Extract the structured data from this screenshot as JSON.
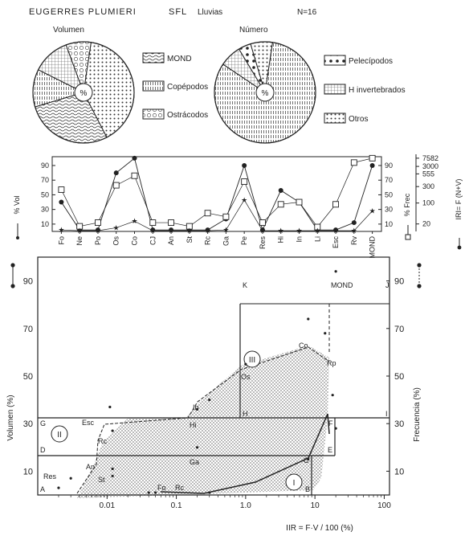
{
  "header": {
    "species": "EUGERRES PLUMIERI",
    "site": "SFL",
    "season": "Lluvias",
    "n": "N=16"
  },
  "colors": {
    "ink": "#222222",
    "paper": "#ffffff",
    "hatch": "#555555"
  },
  "chart_data": [
    {
      "type": "pie",
      "title": "Volumen",
      "center_label": "%",
      "slices": [
        {
          "name": "Otros",
          "value": 40,
          "pattern": "dots"
        },
        {
          "name": "MOND",
          "value": 28,
          "pattern": "waves"
        },
        {
          "name": "Copépodos",
          "value": 12,
          "pattern": "vlines"
        },
        {
          "name": "H invertebrados",
          "value": 12,
          "pattern": "grid"
        },
        {
          "name": "Ostrácodos",
          "value": 8,
          "pattern": "circles"
        }
      ],
      "legend": [
        {
          "name": "MOND",
          "pattern": "waves"
        },
        {
          "name": "Copépodos",
          "pattern": "vlines"
        },
        {
          "name": "Ostrácodos",
          "pattern": "circles"
        }
      ]
    },
    {
      "type": "pie",
      "title": "Número",
      "center_label": "%",
      "slices": [
        {
          "name": "Copépodos",
          "value": 82,
          "pattern": "vlines"
        },
        {
          "name": "H invertebrados",
          "value": 7,
          "pattern": "grid"
        },
        {
          "name": "Pelecípodos",
          "value": 4,
          "pattern": "bigdots"
        },
        {
          "name": "Otros",
          "value": 7,
          "pattern": "dots"
        }
      ],
      "legend": [
        {
          "name": "Pelecípodos",
          "pattern": "bigdots"
        },
        {
          "name": "H invertebrados",
          "pattern": "grid"
        },
        {
          "name": "Otros",
          "pattern": "dots"
        }
      ]
    },
    {
      "type": "line",
      "categories": [
        "Fo",
        "Ne",
        "Po",
        "Os",
        "Co",
        "CJ",
        "An",
        "St",
        "Rc",
        "Ga",
        "Pe",
        "Res",
        "Hi",
        "In",
        "Li",
        "Esc",
        "Rv",
        "MOND"
      ],
      "ylabel_left": "% Vol",
      "ylabel_mid": "% Frec",
      "ylabel_right": "IRI= F (N+V)",
      "yticks_left": [
        "90",
        "70",
        "50",
        "30",
        "10"
      ],
      "yticks_mid": [
        "90",
        "70",
        "50",
        "30",
        "10"
      ],
      "yticks_right": [
        "7582",
        "3000",
        "555",
        "300",
        "100",
        "20"
      ],
      "ylim": [
        0,
        100
      ],
      "series": [
        {
          "marker": "dot",
          "values": [
            40,
            2,
            2,
            80,
            100,
            2,
            2,
            2,
            2,
            17,
            90,
            2,
            56,
            40,
            2,
            2,
            12,
            90
          ]
        },
        {
          "marker": "square",
          "values": [
            57,
            7,
            12,
            63,
            76,
            12,
            12,
            7,
            25,
            20,
            68,
            12,
            37,
            40,
            6,
            37,
            94,
            100
          ]
        },
        {
          "marker": "star",
          "values": [
            2,
            1,
            1,
            5,
            14,
            1,
            1,
            1,
            1,
            2,
            43,
            1,
            1,
            1,
            1,
            1,
            1,
            28
          ]
        }
      ]
    },
    {
      "type": "scatter",
      "xscale": "log",
      "xlim": [
        0.001,
        100
      ],
      "xticks": [
        "0.01",
        "0.1",
        "1.0",
        "10",
        "100"
      ],
      "xlabel": "IIR = F·V / 100 (%)",
      "ylabel_left": "Volumen (%)",
      "ylabel_right": "Frecuencia (%)",
      "yticks": [
        "90",
        "70",
        "50",
        "30",
        "10"
      ],
      "ylim": [
        0,
        100
      ],
      "zone_labels": [
        "I",
        "II",
        "III"
      ],
      "corner_labels": [
        "A",
        "B",
        "C",
        "D",
        "E",
        "F",
        "G",
        "H",
        "I",
        "J",
        "K"
      ],
      "volume_points": [
        {
          "label": "Res",
          "x": 0.002,
          "y": 3
        },
        {
          "label": "Li",
          "x": 0.003,
          "y": 7
        },
        {
          "label": "An",
          "x": 0.012,
          "y": 11
        },
        {
          "label": "St",
          "x": 0.012,
          "y": 8
        },
        {
          "label": "Rc",
          "x": 0.012,
          "y": 27
        },
        {
          "label": "Esc",
          "x": 0.011,
          "y": 37
        },
        {
          "label": "Ga",
          "x": 0.2,
          "y": 20
        },
        {
          "label": "Hi",
          "x": 0.2,
          "y": 36
        },
        {
          "label": "In",
          "x": 0.3,
          "y": 40
        },
        {
          "label": "Os",
          "x": 1.0,
          "y": 55
        },
        {
          "label": "Co",
          "x": 8,
          "y": 74
        },
        {
          "label": "Rp",
          "x": 14,
          "y": 68
        },
        {
          "label": "MOND",
          "x": 20,
          "y": 94
        }
      ],
      "frequency_points": [
        {
          "label": "Fo",
          "x": 0.04,
          "y": 1
        },
        {
          "label": "Ne",
          "x": 0.05,
          "y": 1
        },
        {
          "label": "Po",
          "x": 0.3,
          "y": 1
        },
        {
          "label": "C",
          "x": 8,
          "y": 15
        },
        {
          "label": "F",
          "x": 18,
          "y": 42
        },
        {
          "label": "Pe",
          "x": 20,
          "y": 28
        }
      ],
      "point_labels": [
        "Res",
        "An",
        "St",
        "Rc",
        "Esc",
        "Hi",
        "Ga",
        "In",
        "Os",
        "Co",
        "Rp",
        "MOND",
        "Fo",
        "Rc"
      ]
    }
  ]
}
